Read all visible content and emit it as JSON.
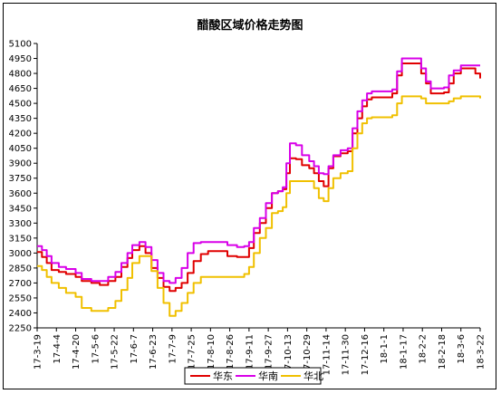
{
  "chart_data": {
    "type": "line",
    "title": "醋酸区域价格走势图",
    "xlabel": "",
    "ylabel": "",
    "ylim": [
      2250,
      5100
    ],
    "yticks": [
      2250,
      2400,
      2550,
      2700,
      2850,
      3000,
      3150,
      3300,
      3450,
      3600,
      3750,
      3900,
      4050,
      4200,
      4350,
      4500,
      4650,
      4800,
      4950,
      5100
    ],
    "x_tick_labels": [
      "17-3-19",
      "17-4-4",
      "17-4-20",
      "17-5-6",
      "17-5-22",
      "17-6-7",
      "17-6-23",
      "17-7-9",
      "17-7-25",
      "17-8-10",
      "17-8-26",
      "17-9-11",
      "17-9-27",
      "17-10-13",
      "17-10-29",
      "17-11-14",
      "17-11-30",
      "17-12-16",
      "18-1-1",
      "18-1-17",
      "18-2-2",
      "18-2-18",
      "18-3-6",
      "18-3-22"
    ],
    "x_start": "2017-03-19",
    "x_end": "2018-03-22",
    "grid": false,
    "legend_position": "bottom",
    "series": [
      {
        "name": "华东",
        "color": "#e00000",
        "points": [
          [
            "2017-03-19",
            3010
          ],
          [
            "2017-03-23",
            2960
          ],
          [
            "2017-03-27",
            2900
          ],
          [
            "2017-03-31",
            2830
          ],
          [
            "2017-04-06",
            2810
          ],
          [
            "2017-04-12",
            2790
          ],
          [
            "2017-04-20",
            2760
          ],
          [
            "2017-04-25",
            2720
          ],
          [
            "2017-05-03",
            2700
          ],
          [
            "2017-05-10",
            2680
          ],
          [
            "2017-05-17",
            2720
          ],
          [
            "2017-05-23",
            2760
          ],
          [
            "2017-05-28",
            2860
          ],
          [
            "2017-06-02",
            2950
          ],
          [
            "2017-06-06",
            3030
          ],
          [
            "2017-06-12",
            3070
          ],
          [
            "2017-06-17",
            3000
          ],
          [
            "2017-06-22",
            2850
          ],
          [
            "2017-06-27",
            2750
          ],
          [
            "2017-07-02",
            2660
          ],
          [
            "2017-07-07",
            2620
          ],
          [
            "2017-07-12",
            2650
          ],
          [
            "2017-07-17",
            2700
          ],
          [
            "2017-07-22",
            2800
          ],
          [
            "2017-07-27",
            2920
          ],
          [
            "2017-08-02",
            2990
          ],
          [
            "2017-08-08",
            3020
          ],
          [
            "2017-08-18",
            3020
          ],
          [
            "2017-08-24",
            2970
          ],
          [
            "2017-09-01",
            2960
          ],
          [
            "2017-09-07",
            2960
          ],
          [
            "2017-09-11",
            3050
          ],
          [
            "2017-09-15",
            3200
          ],
          [
            "2017-09-20",
            3300
          ],
          [
            "2017-09-25",
            3450
          ],
          [
            "2017-09-30",
            3600
          ],
          [
            "2017-10-05",
            3620
          ],
          [
            "2017-10-09",
            3640
          ],
          [
            "2017-10-12",
            3800
          ],
          [
            "2017-10-15",
            3950
          ],
          [
            "2017-10-20",
            3940
          ],
          [
            "2017-10-25",
            3880
          ],
          [
            "2017-10-31",
            3850
          ],
          [
            "2017-11-04",
            3800
          ],
          [
            "2017-11-08",
            3720
          ],
          [
            "2017-11-12",
            3670
          ],
          [
            "2017-11-16",
            3850
          ],
          [
            "2017-11-20",
            3970
          ],
          [
            "2017-11-26",
            4000
          ],
          [
            "2017-12-02",
            4020
          ],
          [
            "2017-12-06",
            4200
          ],
          [
            "2017-12-10",
            4350
          ],
          [
            "2017-12-14",
            4470
          ],
          [
            "2017-12-18",
            4540
          ],
          [
            "2017-12-22",
            4560
          ],
          [
            "2018-01-02",
            4560
          ],
          [
            "2018-01-08",
            4600
          ],
          [
            "2018-01-12",
            4780
          ],
          [
            "2018-01-16",
            4900
          ],
          [
            "2018-01-27",
            4900
          ],
          [
            "2018-02-01",
            4800
          ],
          [
            "2018-02-05",
            4700
          ],
          [
            "2018-02-09",
            4600
          ],
          [
            "2018-02-20",
            4610
          ],
          [
            "2018-02-24",
            4700
          ],
          [
            "2018-02-28",
            4800
          ],
          [
            "2018-03-06",
            4850
          ],
          [
            "2018-03-12",
            4850
          ],
          [
            "2018-03-18",
            4800
          ],
          [
            "2018-03-22",
            4750
          ]
        ]
      },
      {
        "name": "华南",
        "color": "#d800e8",
        "points": [
          [
            "2017-03-19",
            3070
          ],
          [
            "2017-03-23",
            3030
          ],
          [
            "2017-03-27",
            2970
          ],
          [
            "2017-03-31",
            2900
          ],
          [
            "2017-04-06",
            2860
          ],
          [
            "2017-04-12",
            2840
          ],
          [
            "2017-04-20",
            2800
          ],
          [
            "2017-04-25",
            2740
          ],
          [
            "2017-05-03",
            2720
          ],
          [
            "2017-05-10",
            2720
          ],
          [
            "2017-05-17",
            2760
          ],
          [
            "2017-05-23",
            2810
          ],
          [
            "2017-05-28",
            2900
          ],
          [
            "2017-06-02",
            3000
          ],
          [
            "2017-06-06",
            3080
          ],
          [
            "2017-06-12",
            3110
          ],
          [
            "2017-06-17",
            3060
          ],
          [
            "2017-06-22",
            2930
          ],
          [
            "2017-06-27",
            2800
          ],
          [
            "2017-07-02",
            2720
          ],
          [
            "2017-07-07",
            2700
          ],
          [
            "2017-07-12",
            2750
          ],
          [
            "2017-07-17",
            2850
          ],
          [
            "2017-07-22",
            3000
          ],
          [
            "2017-07-27",
            3100
          ],
          [
            "2017-08-02",
            3110
          ],
          [
            "2017-08-18",
            3110
          ],
          [
            "2017-08-24",
            3080
          ],
          [
            "2017-09-01",
            3060
          ],
          [
            "2017-09-07",
            3070
          ],
          [
            "2017-09-11",
            3110
          ],
          [
            "2017-09-15",
            3250
          ],
          [
            "2017-09-20",
            3350
          ],
          [
            "2017-09-25",
            3500
          ],
          [
            "2017-09-30",
            3600
          ],
          [
            "2017-10-05",
            3620
          ],
          [
            "2017-10-09",
            3660
          ],
          [
            "2017-10-12",
            3900
          ],
          [
            "2017-10-15",
            4100
          ],
          [
            "2017-10-20",
            4080
          ],
          [
            "2017-10-25",
            3980
          ],
          [
            "2017-10-31",
            3920
          ],
          [
            "2017-11-04",
            3870
          ],
          [
            "2017-11-08",
            3800
          ],
          [
            "2017-11-12",
            3790
          ],
          [
            "2017-11-16",
            3870
          ],
          [
            "2017-11-20",
            3980
          ],
          [
            "2017-11-26",
            4030
          ],
          [
            "2017-12-02",
            4050
          ],
          [
            "2017-12-06",
            4250
          ],
          [
            "2017-12-10",
            4420
          ],
          [
            "2017-12-14",
            4530
          ],
          [
            "2017-12-18",
            4600
          ],
          [
            "2017-12-22",
            4620
          ],
          [
            "2018-01-02",
            4620
          ],
          [
            "2018-01-08",
            4640
          ],
          [
            "2018-01-12",
            4820
          ],
          [
            "2018-01-16",
            4950
          ],
          [
            "2018-01-27",
            4950
          ],
          [
            "2018-02-01",
            4850
          ],
          [
            "2018-02-05",
            4720
          ],
          [
            "2018-02-09",
            4650
          ],
          [
            "2018-02-20",
            4660
          ],
          [
            "2018-02-24",
            4780
          ],
          [
            "2018-02-28",
            4830
          ],
          [
            "2018-03-06",
            4880
          ],
          [
            "2018-03-22",
            4880
          ]
        ]
      },
      {
        "name": "华北",
        "color": "#f0c000",
        "points": [
          [
            "2017-03-19",
            2870
          ],
          [
            "2017-03-23",
            2830
          ],
          [
            "2017-03-27",
            2760
          ],
          [
            "2017-03-31",
            2700
          ],
          [
            "2017-04-06",
            2650
          ],
          [
            "2017-04-12",
            2600
          ],
          [
            "2017-04-20",
            2560
          ],
          [
            "2017-04-25",
            2450
          ],
          [
            "2017-05-03",
            2420
          ],
          [
            "2017-05-10",
            2420
          ],
          [
            "2017-05-17",
            2450
          ],
          [
            "2017-05-23",
            2520
          ],
          [
            "2017-05-28",
            2630
          ],
          [
            "2017-06-02",
            2750
          ],
          [
            "2017-06-06",
            2900
          ],
          [
            "2017-06-12",
            2970
          ],
          [
            "2017-06-17",
            2970
          ],
          [
            "2017-06-22",
            2820
          ],
          [
            "2017-06-27",
            2650
          ],
          [
            "2017-07-02",
            2500
          ],
          [
            "2017-07-07",
            2370
          ],
          [
            "2017-07-12",
            2420
          ],
          [
            "2017-07-17",
            2500
          ],
          [
            "2017-07-22",
            2600
          ],
          [
            "2017-07-27",
            2700
          ],
          [
            "2017-08-02",
            2760
          ],
          [
            "2017-08-18",
            2760
          ],
          [
            "2017-08-24",
            2760
          ],
          [
            "2017-09-01",
            2760
          ],
          [
            "2017-09-07",
            2790
          ],
          [
            "2017-09-11",
            2860
          ],
          [
            "2017-09-15",
            3000
          ],
          [
            "2017-09-20",
            3150
          ],
          [
            "2017-09-25",
            3250
          ],
          [
            "2017-09-30",
            3400
          ],
          [
            "2017-10-05",
            3420
          ],
          [
            "2017-10-09",
            3460
          ],
          [
            "2017-10-12",
            3600
          ],
          [
            "2017-10-15",
            3720
          ],
          [
            "2017-10-20",
            3720
          ],
          [
            "2017-10-25",
            3720
          ],
          [
            "2017-10-31",
            3720
          ],
          [
            "2017-11-04",
            3650
          ],
          [
            "2017-11-08",
            3550
          ],
          [
            "2017-11-12",
            3520
          ],
          [
            "2017-11-16",
            3650
          ],
          [
            "2017-11-20",
            3750
          ],
          [
            "2017-11-26",
            3800
          ],
          [
            "2017-12-02",
            3820
          ],
          [
            "2017-12-06",
            4050
          ],
          [
            "2017-12-10",
            4200
          ],
          [
            "2017-12-14",
            4300
          ],
          [
            "2017-12-18",
            4350
          ],
          [
            "2017-12-22",
            4360
          ],
          [
            "2018-01-02",
            4360
          ],
          [
            "2018-01-08",
            4380
          ],
          [
            "2018-01-12",
            4500
          ],
          [
            "2018-01-16",
            4570
          ],
          [
            "2018-01-27",
            4570
          ],
          [
            "2018-02-01",
            4550
          ],
          [
            "2018-02-05",
            4500
          ],
          [
            "2018-02-20",
            4500
          ],
          [
            "2018-02-24",
            4520
          ],
          [
            "2018-02-28",
            4550
          ],
          [
            "2018-03-06",
            4570
          ],
          [
            "2018-03-22",
            4550
          ]
        ]
      }
    ]
  }
}
